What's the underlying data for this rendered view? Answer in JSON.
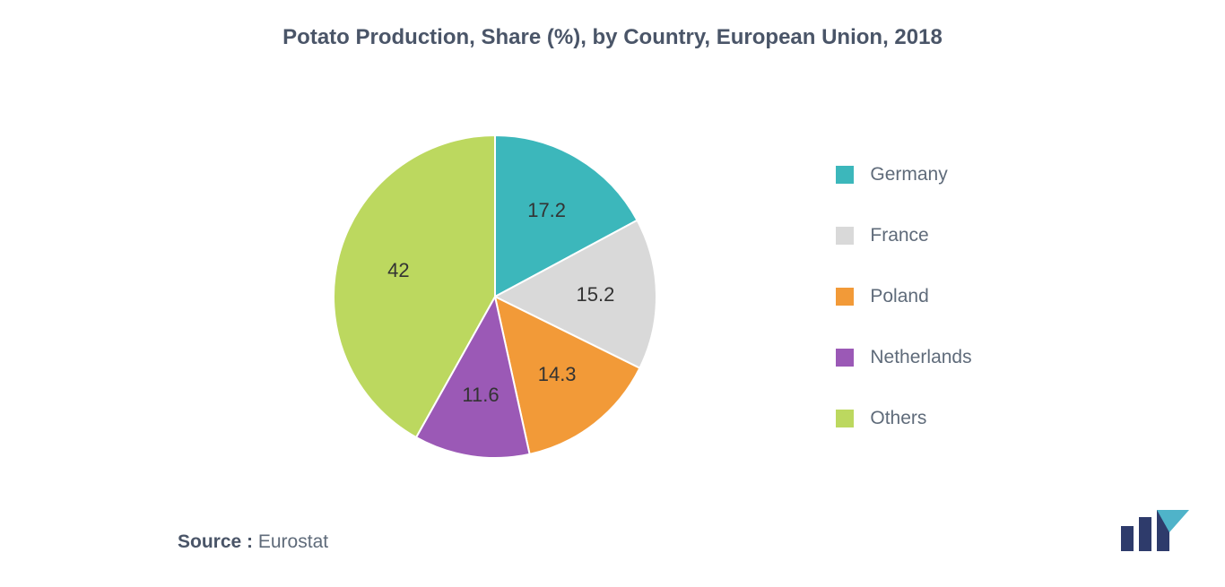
{
  "chart": {
    "type": "pie",
    "title": "Potato Production, Share (%), by Country, European Union, 2018",
    "title_fontsize": 24,
    "title_color": "#4a5568",
    "background_color": "#ffffff",
    "pie_radius": 180,
    "label_fontsize": 22,
    "label_color": "#333333",
    "slices": [
      {
        "label": "Germany",
        "value": 17.2,
        "color": "#3cb7bb"
      },
      {
        "label": "France",
        "value": 15.2,
        "color": "#d9d9d9"
      },
      {
        "label": "Poland",
        "value": 14.3,
        "color": "#f29a38"
      },
      {
        "label": "Netherlands",
        "value": 11.6,
        "color": "#9b59b6"
      },
      {
        "label": "Others",
        "value": 42,
        "color": "#bcd85f"
      }
    ],
    "legend": {
      "fontsize": 21,
      "text_color": "#5f6b7a",
      "swatch_size": 20,
      "position": "right"
    },
    "source_prefix": "Source :",
    "source_name": "Eurostat",
    "logo": {
      "bar_color": "#2e3b6b",
      "tri_color": "#4fb3c9"
    }
  }
}
